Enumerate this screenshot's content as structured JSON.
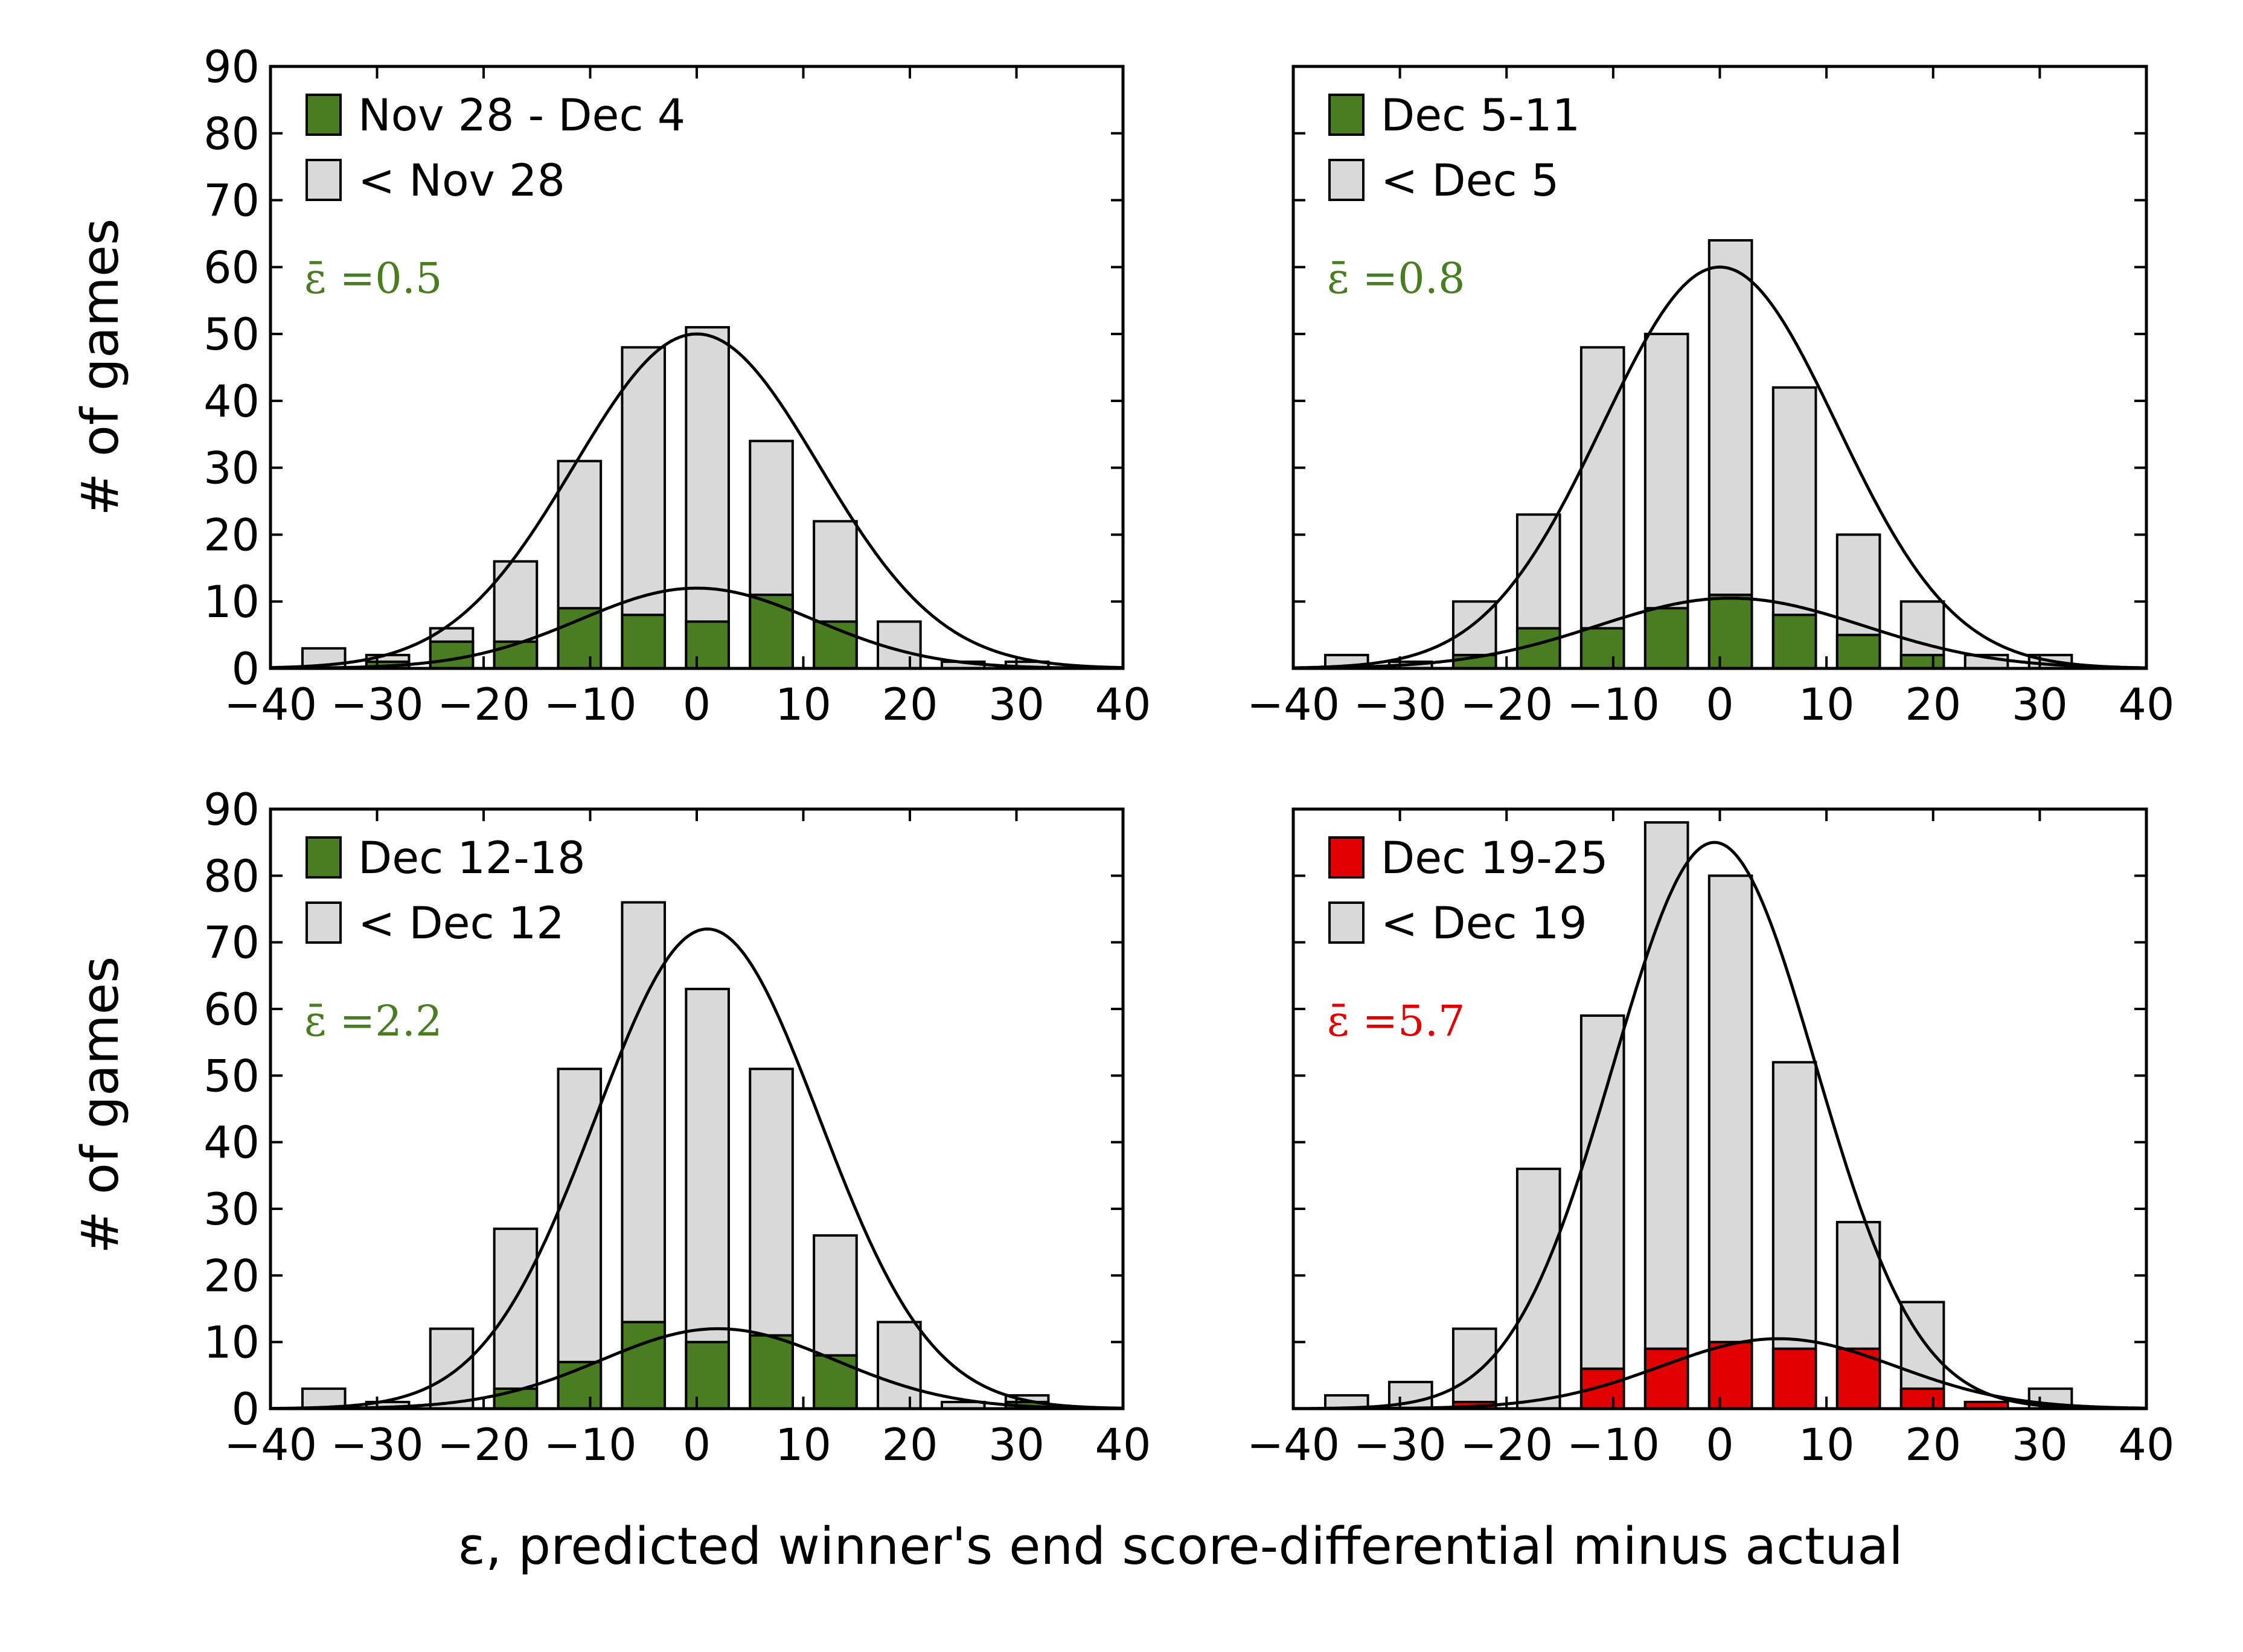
{
  "figure": {
    "ylabel": "# of games",
    "xlabel": "ε, predicted winner's end score-differential minus actual"
  },
  "colors": {
    "green": "#4a7d22",
    "red": "#e00000",
    "gray": "#d9d9d9",
    "edge": "#000000"
  },
  "chart_data": [
    {
      "type": "bar",
      "x": [
        -35,
        -29,
        -23,
        -17,
        -11,
        -5,
        1,
        7,
        13,
        19,
        25,
        31
      ],
      "series": [
        {
          "name": "< Nov 28",
          "values": [
            3,
            2,
            6,
            16,
            31,
            48,
            51,
            34,
            22,
            7,
            1,
            1
          ],
          "color": "#d9d9d9"
        },
        {
          "name": "Nov 28 - Dec 4",
          "values": [
            0,
            1,
            4,
            4,
            9,
            8,
            7,
            11,
            7,
            0,
            0,
            0
          ],
          "color": "#4a7d22"
        }
      ],
      "curves": [
        {
          "amp": 50,
          "mu": 0,
          "sigma": 11.5
        },
        {
          "amp": 12,
          "mu": 0,
          "sigma": 11
        }
      ],
      "annotation": "ε̄ =0.5",
      "annotation_color": "#4a7d22",
      "xlim": [
        -40,
        40
      ],
      "ylim": [
        0,
        90
      ],
      "xticks": [
        "−40",
        "−30",
        "−20",
        "−10",
        "0",
        "10",
        "20",
        "30",
        "40"
      ],
      "yticks": [
        "0",
        "10",
        "20",
        "30",
        "40",
        "50",
        "60",
        "70",
        "80",
        "90"
      ]
    },
    {
      "type": "bar",
      "x": [
        -35,
        -29,
        -23,
        -17,
        -11,
        -5,
        1,
        7,
        13,
        19,
        25,
        31
      ],
      "series": [
        {
          "name": "< Dec 5",
          "values": [
            2,
            1,
            10,
            23,
            48,
            50,
            64,
            42,
            20,
            10,
            2,
            2
          ],
          "color": "#d9d9d9"
        },
        {
          "name": "Dec 5-11",
          "values": [
            0,
            0,
            2,
            6,
            6,
            9,
            11,
            8,
            5,
            2,
            0,
            0
          ],
          "color": "#4a7d22"
        }
      ],
      "curves": [
        {
          "amp": 60,
          "mu": 0,
          "sigma": 11
        },
        {
          "amp": 10.5,
          "mu": 1,
          "sigma": 12.5
        }
      ],
      "annotation": "ε̄ =0.8",
      "annotation_color": "#4a7d22",
      "xlim": [
        -40,
        40
      ],
      "ylim": [
        0,
        90
      ],
      "xticks": [
        "−40",
        "−30",
        "−20",
        "−10",
        "0",
        "10",
        "20",
        "30",
        "40"
      ],
      "yticks": []
    },
    {
      "type": "bar",
      "x": [
        -35,
        -29,
        -23,
        -17,
        -11,
        -5,
        1,
        7,
        13,
        19,
        25,
        31
      ],
      "series": [
        {
          "name": "< Dec 12",
          "values": [
            3,
            1,
            12,
            27,
            51,
            76,
            63,
            51,
            26,
            13,
            1,
            2
          ],
          "color": "#d9d9d9"
        },
        {
          "name": "Dec 12-18",
          "values": [
            0,
            0,
            0,
            3,
            7,
            13,
            10,
            11,
            8,
            0,
            0,
            1
          ],
          "color": "#4a7d22"
        }
      ],
      "curves": [
        {
          "amp": 72,
          "mu": 1,
          "sigma": 10.5
        },
        {
          "amp": 12,
          "mu": 2,
          "sigma": 11
        }
      ],
      "annotation": "ε̄ =2.2",
      "annotation_color": "#4a7d22",
      "xlim": [
        -40,
        40
      ],
      "ylim": [
        0,
        90
      ],
      "xticks": [
        "−40",
        "−30",
        "−20",
        "−10",
        "0",
        "10",
        "20",
        "30",
        "40"
      ],
      "yticks": [
        "0",
        "10",
        "20",
        "30",
        "40",
        "50",
        "60",
        "70",
        "80",
        "90"
      ]
    },
    {
      "type": "bar",
      "x": [
        -35,
        -29,
        -23,
        -17,
        -11,
        -5,
        1,
        7,
        13,
        19,
        25,
        31
      ],
      "series": [
        {
          "name": "< Dec 19",
          "values": [
            2,
            4,
            12,
            36,
            59,
            88,
            80,
            52,
            28,
            16,
            1,
            3
          ],
          "color": "#d9d9d9"
        },
        {
          "name": "Dec 19-25",
          "values": [
            0,
            0,
            1,
            0,
            6,
            9,
            10,
            9,
            9,
            3,
            1,
            0
          ],
          "color": "#e00000"
        }
      ],
      "curves": [
        {
          "amp": 85,
          "mu": -0.5,
          "sigma": 9.5
        },
        {
          "amp": 10.5,
          "mu": 5.5,
          "sigma": 11
        }
      ],
      "annotation": "ε̄ =5.7",
      "annotation_color": "#e00000",
      "xlim": [
        -40,
        40
      ],
      "ylim": [
        0,
        90
      ],
      "xticks": [
        "−40",
        "−30",
        "−20",
        "−10",
        "0",
        "10",
        "20",
        "30",
        "40"
      ],
      "yticks": []
    }
  ]
}
